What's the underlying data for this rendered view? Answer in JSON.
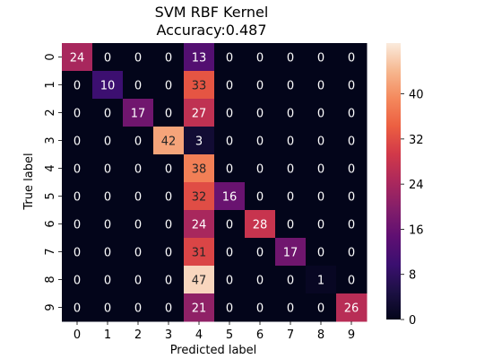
{
  "chart_data": {
    "type": "heatmap",
    "title": [
      "SVM RBF Kernel",
      "Accuracy:0.487"
    ],
    "xlabel": "Predicted label",
    "ylabel": "True label",
    "x_categories": [
      "0",
      "1",
      "2",
      "3",
      "4",
      "5",
      "6",
      "7",
      "8",
      "9"
    ],
    "y_categories": [
      "0",
      "1",
      "2",
      "3",
      "4",
      "5",
      "6",
      "7",
      "8",
      "9"
    ],
    "matrix": [
      [
        24,
        0,
        0,
        0,
        13,
        0,
        0,
        0,
        0,
        0
      ],
      [
        0,
        10,
        0,
        0,
        33,
        0,
        0,
        0,
        0,
        0
      ],
      [
        0,
        0,
        17,
        0,
        27,
        0,
        0,
        0,
        0,
        0
      ],
      [
        0,
        0,
        0,
        42,
        3,
        0,
        0,
        0,
        0,
        0
      ],
      [
        0,
        0,
        0,
        0,
        38,
        0,
        0,
        0,
        0,
        0
      ],
      [
        0,
        0,
        0,
        0,
        32,
        16,
        0,
        0,
        0,
        0
      ],
      [
        0,
        0,
        0,
        0,
        24,
        0,
        28,
        0,
        0,
        0
      ],
      [
        0,
        0,
        0,
        0,
        31,
        0,
        0,
        17,
        0,
        0
      ],
      [
        0,
        0,
        0,
        0,
        47,
        0,
        0,
        0,
        1,
        0
      ],
      [
        0,
        0,
        0,
        0,
        21,
        0,
        0,
        0,
        0,
        26
      ]
    ],
    "colorbar": {
      "min": 0,
      "max": 49,
      "ticks": [
        0,
        8,
        16,
        24,
        32,
        40
      ],
      "colormap": "rocket"
    }
  }
}
